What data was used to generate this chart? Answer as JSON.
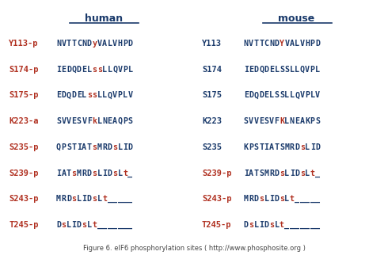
{
  "title": "Figure 6. eIF6 phosphorylation sites ( http://www.phosphosite.org )",
  "human_header": "human",
  "mouse_header": "mouse",
  "blue": "#1a3a6b",
  "red": "#b03020",
  "bg": "#ffffff",
  "rows": [
    {
      "h_label": "Y113-p",
      "h_label_color": "red",
      "h_seq": [
        {
          "c": "N",
          "col": "blue"
        },
        {
          "c": "V",
          "col": "blue"
        },
        {
          "c": "T",
          "col": "blue"
        },
        {
          "c": "T",
          "col": "blue"
        },
        {
          "c": "C",
          "col": "blue"
        },
        {
          "c": "N",
          "col": "blue"
        },
        {
          "c": "D",
          "col": "blue"
        },
        {
          "c": "y",
          "col": "red"
        },
        {
          "c": "V",
          "col": "blue"
        },
        {
          "c": "A",
          "col": "blue"
        },
        {
          "c": "L",
          "col": "blue"
        },
        {
          "c": "V",
          "col": "blue"
        },
        {
          "c": "H",
          "col": "blue"
        },
        {
          "c": "P",
          "col": "blue"
        },
        {
          "c": "D",
          "col": "blue"
        }
      ],
      "m_label": "Y113",
      "m_label_color": "blue",
      "m_seq": [
        {
          "c": "N",
          "col": "blue"
        },
        {
          "c": "V",
          "col": "blue"
        },
        {
          "c": "T",
          "col": "blue"
        },
        {
          "c": "T",
          "col": "blue"
        },
        {
          "c": "C",
          "col": "blue"
        },
        {
          "c": "N",
          "col": "blue"
        },
        {
          "c": "D",
          "col": "blue"
        },
        {
          "c": "Y",
          "col": "red"
        },
        {
          "c": "V",
          "col": "blue"
        },
        {
          "c": "A",
          "col": "blue"
        },
        {
          "c": "L",
          "col": "blue"
        },
        {
          "c": "V",
          "col": "blue"
        },
        {
          "c": "H",
          "col": "blue"
        },
        {
          "c": "P",
          "col": "blue"
        },
        {
          "c": "D",
          "col": "blue"
        }
      ]
    },
    {
      "h_label": "S174-p",
      "h_label_color": "red",
      "h_seq": [
        {
          "c": "I",
          "col": "blue"
        },
        {
          "c": "E",
          "col": "blue"
        },
        {
          "c": "D",
          "col": "blue"
        },
        {
          "c": "Q",
          "col": "blue"
        },
        {
          "c": "D",
          "col": "blue"
        },
        {
          "c": "E",
          "col": "blue"
        },
        {
          "c": "L",
          "col": "blue"
        },
        {
          "c": "s",
          "col": "red"
        },
        {
          "c": "s",
          "col": "red"
        },
        {
          "c": "L",
          "col": "blue"
        },
        {
          "c": "L",
          "col": "blue"
        },
        {
          "c": "Q",
          "col": "blue"
        },
        {
          "c": "V",
          "col": "blue"
        },
        {
          "c": "P",
          "col": "blue"
        },
        {
          "c": "L",
          "col": "blue"
        }
      ],
      "m_label": "S174",
      "m_label_color": "blue",
      "m_seq": [
        {
          "c": "I",
          "col": "blue"
        },
        {
          "c": "E",
          "col": "blue"
        },
        {
          "c": "D",
          "col": "blue"
        },
        {
          "c": "Q",
          "col": "blue"
        },
        {
          "c": "D",
          "col": "blue"
        },
        {
          "c": "E",
          "col": "blue"
        },
        {
          "c": "L",
          "col": "blue"
        },
        {
          "c": "S",
          "col": "blue"
        },
        {
          "c": "S",
          "col": "blue"
        },
        {
          "c": "L",
          "col": "blue"
        },
        {
          "c": "L",
          "col": "blue"
        },
        {
          "c": "Q",
          "col": "blue"
        },
        {
          "c": "V",
          "col": "blue"
        },
        {
          "c": "P",
          "col": "blue"
        },
        {
          "c": "L",
          "col": "blue"
        }
      ]
    },
    {
      "h_label": "S175-p",
      "h_label_color": "red",
      "h_seq": [
        {
          "c": "E",
          "col": "blue"
        },
        {
          "c": "D",
          "col": "blue"
        },
        {
          "c": "Q",
          "col": "blue"
        },
        {
          "c": "D",
          "col": "blue"
        },
        {
          "c": "E",
          "col": "blue"
        },
        {
          "c": "L",
          "col": "blue"
        },
        {
          "c": "s",
          "col": "red"
        },
        {
          "c": "s",
          "col": "red"
        },
        {
          "c": "L",
          "col": "blue"
        },
        {
          "c": "L",
          "col": "blue"
        },
        {
          "c": "Q",
          "col": "blue"
        },
        {
          "c": "V",
          "col": "blue"
        },
        {
          "c": "P",
          "col": "blue"
        },
        {
          "c": "L",
          "col": "blue"
        },
        {
          "c": "V",
          "col": "blue"
        }
      ],
      "m_label": "S175",
      "m_label_color": "blue",
      "m_seq": [
        {
          "c": "E",
          "col": "blue"
        },
        {
          "c": "D",
          "col": "blue"
        },
        {
          "c": "Q",
          "col": "blue"
        },
        {
          "c": "D",
          "col": "blue"
        },
        {
          "c": "E",
          "col": "blue"
        },
        {
          "c": "L",
          "col": "blue"
        },
        {
          "c": "S",
          "col": "blue"
        },
        {
          "c": "S",
          "col": "blue"
        },
        {
          "c": "L",
          "col": "blue"
        },
        {
          "c": "L",
          "col": "blue"
        },
        {
          "c": "Q",
          "col": "blue"
        },
        {
          "c": "V",
          "col": "blue"
        },
        {
          "c": "P",
          "col": "blue"
        },
        {
          "c": "L",
          "col": "blue"
        },
        {
          "c": "V",
          "col": "blue"
        }
      ]
    },
    {
      "h_label": "K223-a",
      "h_label_color": "red",
      "h_seq": [
        {
          "c": "S",
          "col": "blue"
        },
        {
          "c": "V",
          "col": "blue"
        },
        {
          "c": "V",
          "col": "blue"
        },
        {
          "c": "E",
          "col": "blue"
        },
        {
          "c": "S",
          "col": "blue"
        },
        {
          "c": "V",
          "col": "blue"
        },
        {
          "c": "F",
          "col": "blue"
        },
        {
          "c": "k",
          "col": "red"
        },
        {
          "c": "L",
          "col": "blue"
        },
        {
          "c": "N",
          "col": "blue"
        },
        {
          "c": "E",
          "col": "blue"
        },
        {
          "c": "A",
          "col": "blue"
        },
        {
          "c": "Q",
          "col": "blue"
        },
        {
          "c": "P",
          "col": "blue"
        },
        {
          "c": "S",
          "col": "blue"
        }
      ],
      "m_label": "K223",
      "m_label_color": "blue",
      "m_seq": [
        {
          "c": "S",
          "col": "blue"
        },
        {
          "c": "V",
          "col": "blue"
        },
        {
          "c": "V",
          "col": "blue"
        },
        {
          "c": "E",
          "col": "blue"
        },
        {
          "c": "S",
          "col": "blue"
        },
        {
          "c": "V",
          "col": "blue"
        },
        {
          "c": "F",
          "col": "blue"
        },
        {
          "c": "K",
          "col": "red"
        },
        {
          "c": "L",
          "col": "blue"
        },
        {
          "c": "N",
          "col": "blue"
        },
        {
          "c": "E",
          "col": "blue"
        },
        {
          "c": "A",
          "col": "blue"
        },
        {
          "c": "K",
          "col": "blue"
        },
        {
          "c": "P",
          "col": "blue"
        },
        {
          "c": "S",
          "col": "blue"
        }
      ]
    },
    {
      "h_label": "S235-p",
      "h_label_color": "red",
      "h_seq": [
        {
          "c": "Q",
          "col": "blue"
        },
        {
          "c": "P",
          "col": "blue"
        },
        {
          "c": "S",
          "col": "blue"
        },
        {
          "c": "T",
          "col": "blue"
        },
        {
          "c": "I",
          "col": "blue"
        },
        {
          "c": "A",
          "col": "blue"
        },
        {
          "c": "T",
          "col": "blue"
        },
        {
          "c": "s",
          "col": "red"
        },
        {
          "c": "M",
          "col": "blue"
        },
        {
          "c": "R",
          "col": "blue"
        },
        {
          "c": "D",
          "col": "blue"
        },
        {
          "c": "s",
          "col": "red"
        },
        {
          "c": "L",
          "col": "blue"
        },
        {
          "c": "I",
          "col": "blue"
        },
        {
          "c": "D",
          "col": "blue"
        }
      ],
      "m_label": "S235",
      "m_label_color": "blue",
      "m_seq": [
        {
          "c": "K",
          "col": "blue"
        },
        {
          "c": "P",
          "col": "blue"
        },
        {
          "c": "S",
          "col": "blue"
        },
        {
          "c": "T",
          "col": "blue"
        },
        {
          "c": "I",
          "col": "blue"
        },
        {
          "c": "A",
          "col": "blue"
        },
        {
          "c": "T",
          "col": "blue"
        },
        {
          "c": "S",
          "col": "blue"
        },
        {
          "c": "M",
          "col": "blue"
        },
        {
          "c": "R",
          "col": "blue"
        },
        {
          "c": "D",
          "col": "blue"
        },
        {
          "c": "s",
          "col": "red"
        },
        {
          "c": "L",
          "col": "blue"
        },
        {
          "c": "I",
          "col": "blue"
        },
        {
          "c": "D",
          "col": "blue"
        }
      ]
    },
    {
      "h_label": "S239-p",
      "h_label_color": "red",
      "h_seq": [
        {
          "c": "I",
          "col": "blue"
        },
        {
          "c": "A",
          "col": "blue"
        },
        {
          "c": "T",
          "col": "blue"
        },
        {
          "c": "s",
          "col": "red"
        },
        {
          "c": "M",
          "col": "blue"
        },
        {
          "c": "R",
          "col": "blue"
        },
        {
          "c": "D",
          "col": "blue"
        },
        {
          "c": "s",
          "col": "red"
        },
        {
          "c": "L",
          "col": "blue"
        },
        {
          "c": "I",
          "col": "blue"
        },
        {
          "c": "D",
          "col": "blue"
        },
        {
          "c": "s",
          "col": "red"
        },
        {
          "c": "L",
          "col": "blue"
        },
        {
          "c": "t",
          "col": "red"
        },
        {
          "c": "_",
          "col": "blue"
        }
      ],
      "m_label": "S239-p",
      "m_label_color": "red",
      "m_seq": [
        {
          "c": "I",
          "col": "blue"
        },
        {
          "c": "A",
          "col": "blue"
        },
        {
          "c": "T",
          "col": "blue"
        },
        {
          "c": "S",
          "col": "blue"
        },
        {
          "c": "M",
          "col": "blue"
        },
        {
          "c": "R",
          "col": "blue"
        },
        {
          "c": "D",
          "col": "blue"
        },
        {
          "c": "s",
          "col": "red"
        },
        {
          "c": "L",
          "col": "blue"
        },
        {
          "c": "I",
          "col": "blue"
        },
        {
          "c": "D",
          "col": "blue"
        },
        {
          "c": "s",
          "col": "red"
        },
        {
          "c": "L",
          "col": "blue"
        },
        {
          "c": "t",
          "col": "red"
        },
        {
          "c": "_",
          "col": "blue"
        }
      ]
    },
    {
      "h_label": "S243-p",
      "h_label_color": "red",
      "h_seq": [
        {
          "c": "M",
          "col": "blue"
        },
        {
          "c": "R",
          "col": "blue"
        },
        {
          "c": "D",
          "col": "blue"
        },
        {
          "c": "s",
          "col": "red"
        },
        {
          "c": "L",
          "col": "blue"
        },
        {
          "c": "I",
          "col": "blue"
        },
        {
          "c": "D",
          "col": "blue"
        },
        {
          "c": "s",
          "col": "red"
        },
        {
          "c": "L",
          "col": "blue"
        },
        {
          "c": "t",
          "col": "red"
        },
        {
          "c": "_",
          "col": "blue"
        },
        {
          "c": "_",
          "col": "blue"
        },
        {
          "c": "_",
          "col": "blue"
        },
        {
          "c": "_",
          "col": "blue"
        },
        {
          "c": "_",
          "col": "blue"
        }
      ],
      "m_label": "S243-p",
      "m_label_color": "red",
      "m_seq": [
        {
          "c": "M",
          "col": "blue"
        },
        {
          "c": "R",
          "col": "blue"
        },
        {
          "c": "D",
          "col": "blue"
        },
        {
          "c": "s",
          "col": "red"
        },
        {
          "c": "L",
          "col": "blue"
        },
        {
          "c": "I",
          "col": "blue"
        },
        {
          "c": "D",
          "col": "blue"
        },
        {
          "c": "s",
          "col": "red"
        },
        {
          "c": "L",
          "col": "blue"
        },
        {
          "c": "t",
          "col": "red"
        },
        {
          "c": "_",
          "col": "blue"
        },
        {
          "c": "_",
          "col": "blue"
        },
        {
          "c": "_",
          "col": "blue"
        },
        {
          "c": "_",
          "col": "blue"
        },
        {
          "c": "_",
          "col": "blue"
        }
      ]
    },
    {
      "h_label": "T245-p",
      "h_label_color": "red",
      "h_seq": [
        {
          "c": "D",
          "col": "blue"
        },
        {
          "c": "s",
          "col": "red"
        },
        {
          "c": "L",
          "col": "blue"
        },
        {
          "c": "I",
          "col": "blue"
        },
        {
          "c": "D",
          "col": "blue"
        },
        {
          "c": "s",
          "col": "red"
        },
        {
          "c": "L",
          "col": "blue"
        },
        {
          "c": "t",
          "col": "red"
        },
        {
          "c": "_",
          "col": "blue"
        },
        {
          "c": "_",
          "col": "blue"
        },
        {
          "c": "_",
          "col": "blue"
        },
        {
          "c": "_",
          "col": "blue"
        },
        {
          "c": "_",
          "col": "blue"
        },
        {
          "c": "_",
          "col": "blue"
        },
        {
          "c": "_",
          "col": "blue"
        }
      ],
      "m_label": "T245-p",
      "m_label_color": "red",
      "m_seq": [
        {
          "c": "D",
          "col": "blue"
        },
        {
          "c": "s",
          "col": "red"
        },
        {
          "c": "L",
          "col": "blue"
        },
        {
          "c": "I",
          "col": "blue"
        },
        {
          "c": "D",
          "col": "blue"
        },
        {
          "c": "s",
          "col": "red"
        },
        {
          "c": "L",
          "col": "blue"
        },
        {
          "c": "t",
          "col": "red"
        },
        {
          "c": "_",
          "col": "blue"
        },
        {
          "c": "_",
          "col": "blue"
        },
        {
          "c": "_",
          "col": "blue"
        },
        {
          "c": "_",
          "col": "blue"
        },
        {
          "c": "_",
          "col": "blue"
        },
        {
          "c": "_",
          "col": "blue"
        },
        {
          "c": "_",
          "col": "blue"
        }
      ]
    }
  ]
}
